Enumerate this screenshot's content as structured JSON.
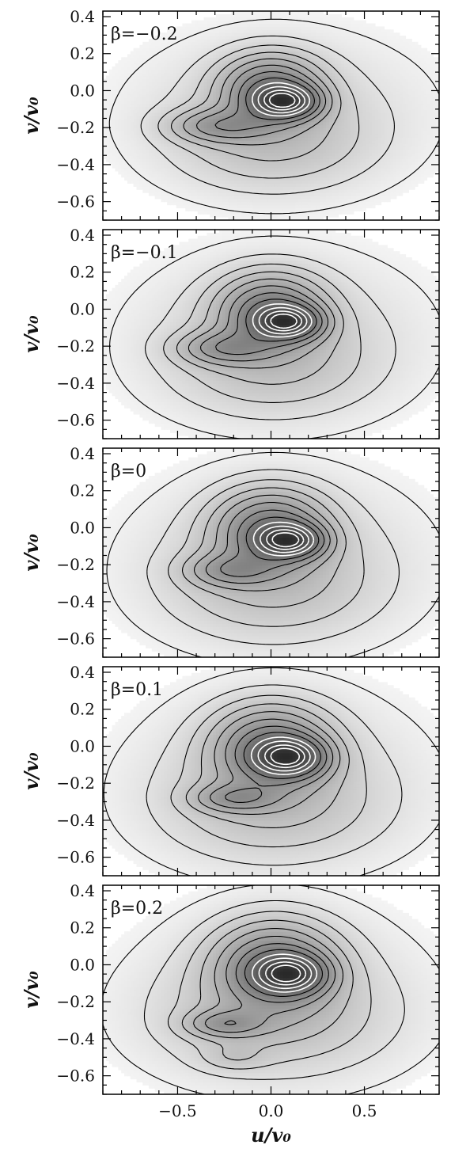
{
  "chart_data": [
    {
      "type": "contour",
      "label": "β=−0.2",
      "xlabel": "",
      "ylabel": "v/v₀",
      "xlim": [
        -0.9,
        0.9
      ],
      "ylim": [
        -0.7,
        0.43
      ],
      "yticks": [
        "−0.6",
        "−0.4",
        "−0.2",
        "0.0",
        "0.2",
        "0.4"
      ],
      "ytick_values": [
        -0.6,
        -0.4,
        -0.2,
        0.0,
        0.2,
        0.4
      ],
      "xticks": [],
      "xtick_values": [
        -0.5,
        0.0,
        0.5
      ],
      "peaks": [
        {
          "u": 0.08,
          "v": -0.06,
          "amp": 1.0,
          "su": 0.12,
          "sv": 0.06
        },
        {
          "u": 0.0,
          "v": 0.02,
          "amp": 0.75,
          "su": 0.18,
          "sv": 0.12
        },
        {
          "u": -0.28,
          "v": -0.19,
          "amp": 0.45,
          "su": 0.18,
          "sv": 0.06
        },
        {
          "u": 0.0,
          "v": -0.28,
          "amp": 0.25,
          "su": 0.35,
          "sv": 0.18
        },
        {
          "u": 0.05,
          "v": -0.1,
          "amp": 0.18,
          "su": 0.55,
          "sv": 0.3
        }
      ]
    },
    {
      "type": "contour",
      "label": "β=−0.1",
      "xlabel": "",
      "ylabel": "v/v₀",
      "xlim": [
        -0.9,
        0.9
      ],
      "ylim": [
        -0.7,
        0.43
      ],
      "yticks": [
        "−0.6",
        "−0.4",
        "−0.2",
        "0.0",
        "0.2",
        "0.4"
      ],
      "ytick_values": [
        -0.6,
        -0.4,
        -0.2,
        0.0,
        0.2,
        0.4
      ],
      "xticks": [],
      "xtick_values": [
        -0.5,
        0.0,
        0.5
      ],
      "peaks": [
        {
          "u": 0.09,
          "v": -0.07,
          "amp": 1.0,
          "su": 0.12,
          "sv": 0.06
        },
        {
          "u": 0.0,
          "v": 0.0,
          "amp": 0.75,
          "su": 0.19,
          "sv": 0.13
        },
        {
          "u": -0.25,
          "v": -0.21,
          "amp": 0.45,
          "su": 0.17,
          "sv": 0.06
        },
        {
          "u": 0.0,
          "v": -0.3,
          "amp": 0.25,
          "su": 0.36,
          "sv": 0.19
        },
        {
          "u": 0.05,
          "v": -0.12,
          "amp": 0.18,
          "su": 0.55,
          "sv": 0.32
        }
      ]
    },
    {
      "type": "contour",
      "label": "β=0",
      "xlabel": "",
      "ylabel": "v/v₀",
      "xlim": [
        -0.9,
        0.9
      ],
      "ylim": [
        -0.7,
        0.43
      ],
      "yticks": [
        "−0.6",
        "−0.4",
        "−0.2",
        "0.0",
        "0.2",
        "0.4"
      ],
      "ytick_values": [
        -0.6,
        -0.4,
        -0.2,
        0.0,
        0.2,
        0.4
      ],
      "xticks": [],
      "xtick_values": [
        -0.5,
        0.0,
        0.5
      ],
      "peaks": [
        {
          "u": 0.1,
          "v": -0.07,
          "amp": 1.0,
          "su": 0.12,
          "sv": 0.06
        },
        {
          "u": 0.0,
          "v": 0.0,
          "amp": 0.78,
          "su": 0.2,
          "sv": 0.14
        },
        {
          "u": -0.22,
          "v": -0.23,
          "amp": 0.42,
          "su": 0.16,
          "sv": 0.06
        },
        {
          "u": 0.0,
          "v": -0.32,
          "amp": 0.25,
          "su": 0.38,
          "sv": 0.2
        },
        {
          "u": 0.05,
          "v": -0.14,
          "amp": 0.18,
          "su": 0.55,
          "sv": 0.33
        }
      ]
    },
    {
      "type": "contour",
      "label": "β=0.1",
      "xlabel": "",
      "ylabel": "v/v₀",
      "xlim": [
        -0.9,
        0.9
      ],
      "ylim": [
        -0.7,
        0.43
      ],
      "yticks": [
        "−0.6",
        "−0.4",
        "−0.2",
        "0.0",
        "0.2",
        "0.4"
      ],
      "ytick_values": [
        -0.6,
        -0.4,
        -0.2,
        0.0,
        0.2,
        0.4
      ],
      "xticks": [],
      "xtick_values": [
        -0.5,
        0.0,
        0.5
      ],
      "peaks": [
        {
          "u": 0.1,
          "v": -0.06,
          "amp": 1.0,
          "su": 0.13,
          "sv": 0.07
        },
        {
          "u": 0.0,
          "v": 0.0,
          "amp": 0.8,
          "su": 0.21,
          "sv": 0.15
        },
        {
          "u": -0.2,
          "v": -0.28,
          "amp": 0.42,
          "su": 0.15,
          "sv": 0.05
        },
        {
          "u": 0.0,
          "v": -0.33,
          "amp": 0.25,
          "su": 0.4,
          "sv": 0.2
        },
        {
          "u": 0.05,
          "v": -0.15,
          "amp": 0.18,
          "su": 0.55,
          "sv": 0.34
        }
      ]
    },
    {
      "type": "contour",
      "label": "β=0.2",
      "xlabel": "u/v₀",
      "ylabel": "v/v₀",
      "xlim": [
        -0.9,
        0.9
      ],
      "ylim": [
        -0.7,
        0.43
      ],
      "yticks": [
        "−0.6",
        "−0.4",
        "−0.2",
        "0.0",
        "0.2",
        "0.4"
      ],
      "ytick_values": [
        -0.6,
        -0.4,
        -0.2,
        0.0,
        0.2,
        0.4
      ],
      "xticks": [
        "−0.5",
        "0.0",
        "0.5"
      ],
      "xtick_values": [
        -0.5,
        0.0,
        0.5
      ],
      "peaks": [
        {
          "u": 0.1,
          "v": -0.05,
          "amp": 1.0,
          "su": 0.13,
          "sv": 0.07
        },
        {
          "u": 0.02,
          "v": 0.0,
          "amp": 0.82,
          "su": 0.22,
          "sv": 0.16
        },
        {
          "u": -0.25,
          "v": -0.32,
          "amp": 0.45,
          "su": 0.14,
          "sv": 0.05
        },
        {
          "u": -0.2,
          "v": -0.5,
          "amp": 0.15,
          "su": 0.12,
          "sv": 0.05
        },
        {
          "u": 0.0,
          "v": -0.3,
          "amp": 0.25,
          "su": 0.42,
          "sv": 0.2
        },
        {
          "u": 0.05,
          "v": -0.15,
          "amp": 0.18,
          "su": 0.55,
          "sv": 0.34
        }
      ]
    }
  ]
}
